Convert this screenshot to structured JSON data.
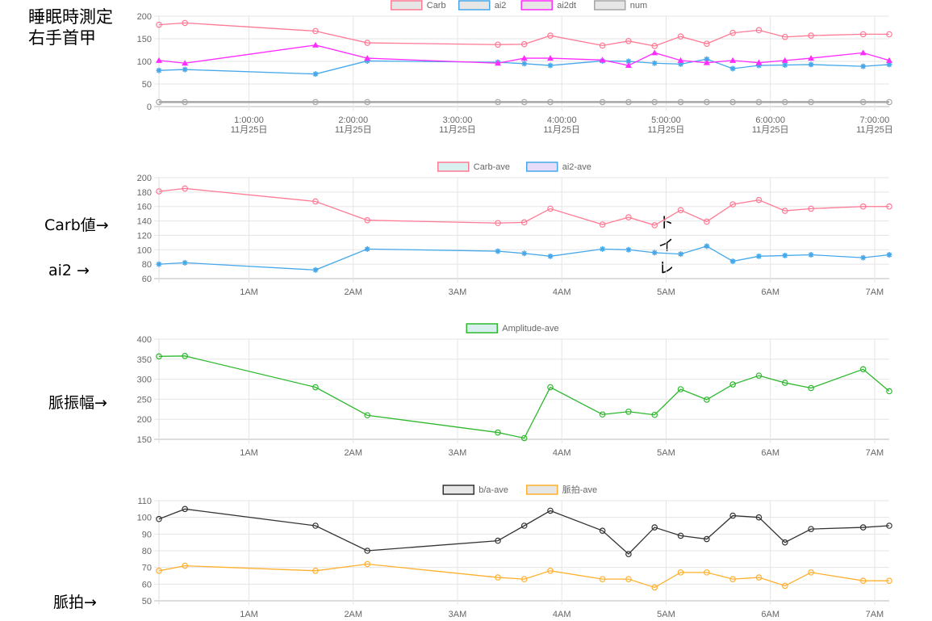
{
  "annotations": {
    "title": "睡眠時測定\n右手首甲",
    "carb": "Carb値→",
    "ai2": "ai2 →",
    "amp": "脈振幅→",
    "pulse": "脈拍→",
    "toilet": "ト\nイ\nレ"
  },
  "chart_data": [
    {
      "type": "line",
      "title": "",
      "xlabel": "",
      "ylabel": "",
      "xlim": [
        0.137,
        7.14
      ],
      "ylim": [
        0,
        200
      ],
      "yticks": [
        0,
        50,
        100,
        150,
        200
      ],
      "xticks": [
        {
          "x": 1,
          "label": "1:00:00",
          "sub": "11月25日"
        },
        {
          "x": 2,
          "label": "2:00:00",
          "sub": "11月25日"
        },
        {
          "x": 3,
          "label": "3:00:00",
          "sub": "11月25日"
        },
        {
          "x": 4,
          "label": "4:00:00",
          "sub": "11月25日"
        },
        {
          "x": 5,
          "label": "5:00:00",
          "sub": "11月25日"
        },
        {
          "x": 6,
          "label": "6:00:00",
          "sub": "11月25日"
        },
        {
          "x": 7,
          "label": "7:00:00",
          "sub": "11月25日"
        }
      ],
      "x": [
        0.137,
        0.386,
        1.638,
        2.135,
        3.387,
        3.64,
        3.89,
        4.39,
        4.64,
        4.89,
        5.14,
        5.39,
        5.64,
        5.89,
        6.14,
        6.39,
        6.89,
        7.14
      ],
      "legend": "top-center",
      "grid": true,
      "series": [
        {
          "name": "Carb",
          "color": "#ff7a95",
          "fill": "#e6e6e6",
          "marker": "circle",
          "values": [
            181,
            185,
            167,
            141,
            137,
            138,
            157,
            135,
            145,
            134,
            155,
            139,
            163,
            169,
            154,
            157,
            160,
            160
          ]
        },
        {
          "name": "ai2",
          "color": "#46a8ea",
          "fill": "#e6e6e6",
          "marker": "star",
          "values": [
            80,
            82,
            72,
            101,
            98,
            95,
            91,
            101,
            100,
            96,
            94,
            105,
            84,
            91,
            92,
            93,
            89,
            93
          ]
        },
        {
          "name": "ai2dt",
          "color": "#ff2cff",
          "fill": "#e6e6e6",
          "marker": "triangle",
          "values": [
            102,
            96,
            136,
            107,
            96,
            107,
            107,
            103,
            91,
            119,
            102,
            97,
            102,
            97,
            102,
            107,
            119,
            102
          ]
        },
        {
          "name": "num",
          "color": "#a6a6a6",
          "fill": "#e6e6e6",
          "marker": "circle",
          "values": [
            10,
            10,
            10,
            10,
            10,
            10,
            10,
            10,
            10,
            10,
            10,
            10,
            10,
            10,
            10,
            10,
            10,
            10
          ]
        }
      ]
    },
    {
      "type": "line",
      "xlim": [
        0.137,
        7.14
      ],
      "ylim": [
        60,
        200
      ],
      "yticks": [
        60,
        80,
        100,
        120,
        140,
        160,
        180,
        200
      ],
      "xticks": [
        {
          "x": 1,
          "label": "1AM"
        },
        {
          "x": 2,
          "label": "2AM"
        },
        {
          "x": 3,
          "label": "3AM"
        },
        {
          "x": 4,
          "label": "4AM"
        },
        {
          "x": 5,
          "label": "5AM"
        },
        {
          "x": 6,
          "label": "6AM"
        },
        {
          "x": 7,
          "label": "7AM"
        }
      ],
      "x": [
        0.137,
        0.386,
        1.638,
        2.135,
        3.387,
        3.64,
        3.89,
        4.39,
        4.64,
        4.89,
        5.14,
        5.39,
        5.64,
        5.89,
        6.14,
        6.39,
        6.89,
        7.14
      ],
      "legend": "top-center",
      "grid": true,
      "series": [
        {
          "name": "Carb-ave",
          "color": "#ff7a95",
          "fill": "#d8f0ee",
          "marker": "circle",
          "values": [
            181,
            185,
            167,
            141,
            137,
            138,
            157,
            135,
            145,
            134,
            155,
            139,
            163,
            169,
            154,
            157,
            160,
            160
          ]
        },
        {
          "name": "ai2-ave",
          "color": "#46a8ea",
          "fill": "#e8dcfb",
          "marker": "star",
          "values": [
            80,
            82,
            72,
            101,
            98,
            95,
            91,
            101,
            100,
            96,
            94,
            105,
            84,
            91,
            92,
            93,
            89,
            93
          ]
        }
      ]
    },
    {
      "type": "line",
      "xlim": [
        0.137,
        7.14
      ],
      "ylim": [
        150,
        400
      ],
      "yticks": [
        150,
        200,
        250,
        300,
        350,
        400
      ],
      "xticks": [
        {
          "x": 1,
          "label": "1AM"
        },
        {
          "x": 2,
          "label": "2AM"
        },
        {
          "x": 3,
          "label": "3AM"
        },
        {
          "x": 4,
          "label": "4AM"
        },
        {
          "x": 5,
          "label": "5AM"
        },
        {
          "x": 6,
          "label": "6AM"
        },
        {
          "x": 7,
          "label": "7AM"
        }
      ],
      "x": [
        0.137,
        0.386,
        1.638,
        2.135,
        3.387,
        3.64,
        3.89,
        4.39,
        4.64,
        4.89,
        5.14,
        5.39,
        5.64,
        5.89,
        6.14,
        6.39,
        6.89,
        7.14
      ],
      "legend": "top-center",
      "grid": true,
      "series": [
        {
          "name": "Amplitude-ave",
          "color": "#2eb82e",
          "fill": "#d8f0ee",
          "marker": "circle",
          "values": [
            357,
            358,
            280,
            210,
            167,
            153,
            280,
            212,
            219,
            211,
            275,
            249,
            287,
            309,
            291,
            278,
            325,
            270
          ]
        }
      ]
    },
    {
      "type": "line",
      "xlim": [
        0.137,
        7.14
      ],
      "ylim": [
        50,
        110
      ],
      "yticks": [
        50,
        60,
        70,
        80,
        90,
        100,
        110
      ],
      "xticks": [
        {
          "x": 1,
          "label": "1AM"
        },
        {
          "x": 2,
          "label": "2AM"
        },
        {
          "x": 3,
          "label": "3AM"
        },
        {
          "x": 4,
          "label": "4AM"
        },
        {
          "x": 5,
          "label": "5AM"
        },
        {
          "x": 6,
          "label": "6AM"
        },
        {
          "x": 7,
          "label": "7AM"
        }
      ],
      "x": [
        0.137,
        0.386,
        1.638,
        2.135,
        3.387,
        3.64,
        3.89,
        4.39,
        4.64,
        4.89,
        5.14,
        5.39,
        5.64,
        5.89,
        6.14,
        6.39,
        6.89,
        7.14
      ],
      "legend": "top-center",
      "grid": true,
      "series": [
        {
          "name": "b/a-ave",
          "color": "#333333",
          "fill": "#e6e6e6",
          "marker": "circle",
          "values": [
            99,
            105,
            95,
            80,
            86,
            95,
            104,
            92,
            78,
            94,
            89,
            87,
            101,
            100,
            85,
            93,
            94,
            95
          ]
        },
        {
          "name": "脈拍-ave",
          "color": "#ffb02e",
          "fill": "#e6e6e6",
          "marker": "circle",
          "values": [
            68,
            71,
            68,
            72,
            64,
            63,
            68,
            63,
            63,
            58,
            67,
            67,
            63,
            64,
            59,
            67,
            62,
            62
          ]
        }
      ]
    }
  ]
}
